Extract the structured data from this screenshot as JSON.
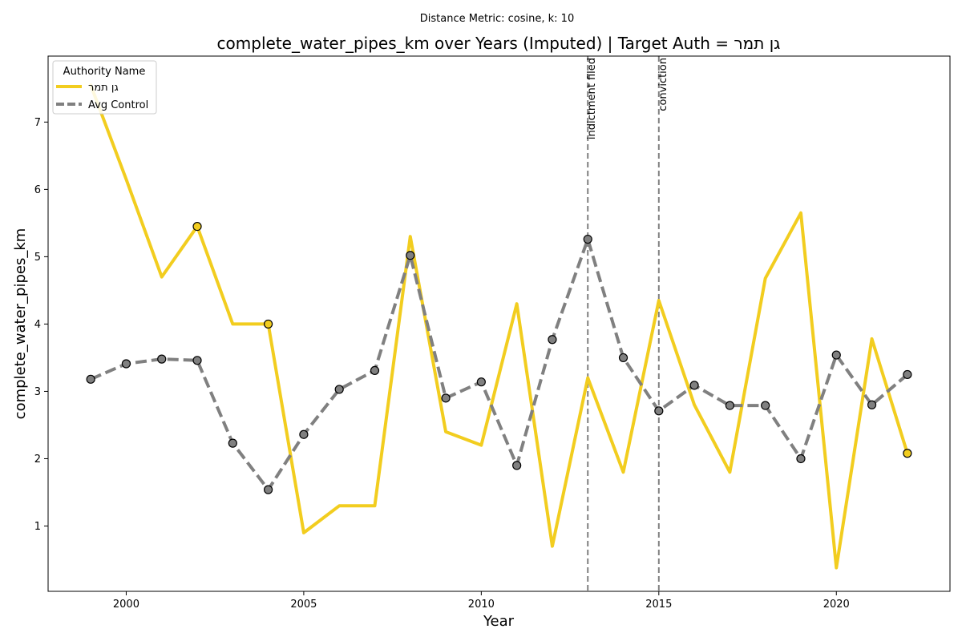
{
  "chart_data": {
    "type": "line",
    "suptitle": "Distance Metric: cosine, k: 10",
    "title": "complete_water_pipes_km over Years (Imputed) | Target Auth = גן תמר",
    "xlabel": "Year",
    "ylabel": "complete_water_pipes_km",
    "xlim": [
      1997.8,
      2023.2
    ],
    "ylim": [
      0.03,
      7.98
    ],
    "xticks": [
      2000,
      2005,
      2010,
      2015,
      2020
    ],
    "yticks": [
      1,
      2,
      3,
      4,
      5,
      6,
      7
    ],
    "grid": false,
    "legend": {
      "title": "Authority Name",
      "placement": "top-left"
    },
    "x": [
      1999,
      2000,
      2001,
      2002,
      2003,
      2004,
      2005,
      2006,
      2007,
      2008,
      2009,
      2010,
      2011,
      2012,
      2013,
      2014,
      2015,
      2016,
      2017,
      2018,
      2019,
      2020,
      2021,
      2022
    ],
    "series": [
      {
        "name": "גן תמר",
        "color": "#f2cd1f",
        "style": "solid",
        "values": [
          7.55,
          6.15,
          4.7,
          5.45,
          4.0,
          4.0,
          0.9,
          1.3,
          1.3,
          5.3,
          2.4,
          2.2,
          4.3,
          0.7,
          3.2,
          1.8,
          4.35,
          2.8,
          1.8,
          4.68,
          5.65,
          0.38,
          3.78,
          2.08
        ],
        "markers_at": [
          2002,
          2004,
          2022
        ]
      },
      {
        "name": "Avg Control",
        "color": "#808080",
        "style": "dashed",
        "values": [
          3.18,
          3.41,
          3.48,
          3.46,
          2.23,
          1.54,
          2.36,
          3.03,
          3.31,
          5.02,
          2.9,
          3.14,
          1.9,
          3.77,
          5.26,
          3.5,
          2.71,
          3.09,
          2.79,
          2.79,
          2.0,
          3.54,
          2.8,
          3.25
        ],
        "markers_at": [
          1999,
          2000,
          2001,
          2002,
          2003,
          2004,
          2005,
          2006,
          2007,
          2008,
          2009,
          2010,
          2011,
          2012,
          2013,
          2014,
          2015,
          2016,
          2017,
          2018,
          2019,
          2020,
          2021,
          2022
        ]
      }
    ],
    "annotations": [
      {
        "x": 2013,
        "label": "indictment filed"
      },
      {
        "x": 2015,
        "label": "conviction"
      }
    ]
  }
}
